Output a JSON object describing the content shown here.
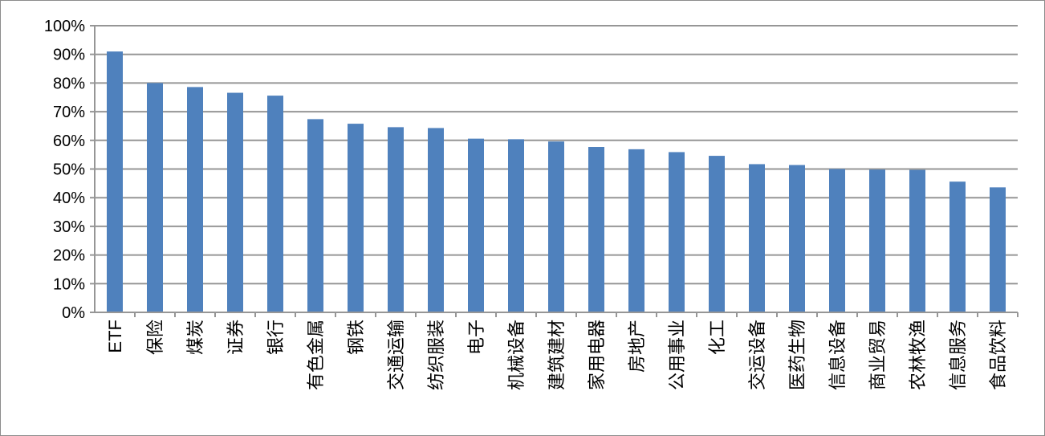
{
  "chart_data": {
    "type": "bar",
    "title": "",
    "xlabel": "",
    "ylabel": "",
    "ylim": [
      0,
      100
    ],
    "yticks": [
      "0%",
      "10%",
      "20%",
      "30%",
      "40%",
      "50%",
      "60%",
      "70%",
      "80%",
      "90%",
      "100%"
    ],
    "grid": true,
    "legend": "none",
    "bar_color": "#4f81bd",
    "categories": [
      "ETF",
      "保险",
      "煤炭",
      "证券",
      "银行",
      "有色金属",
      "钢铁",
      "交通运输",
      "纺织服装",
      "电子",
      "机械设备",
      "建筑建材",
      "家用电器",
      "房地产",
      "公用事业",
      "化工",
      "交运设备",
      "医药生物",
      "信息设备",
      "商业贸易",
      "农林牧渔",
      "信息服务",
      "食品饮料"
    ],
    "values": [
      91.0,
      80.0,
      78.6,
      76.6,
      75.6,
      67.4,
      65.8,
      64.6,
      64.3,
      60.6,
      60.4,
      59.6,
      57.7,
      56.9,
      55.9,
      54.6,
      51.7,
      51.4,
      50.0,
      49.8,
      49.7,
      45.6,
      43.6
    ]
  }
}
